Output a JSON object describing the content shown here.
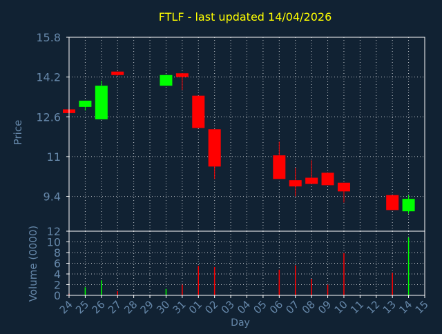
{
  "colors": {
    "background": "#112233",
    "axis": "#FFFFFF",
    "grid": "#FFFFFF",
    "label_text": "#6688AA",
    "title_text": "#FFFF00",
    "up": "#00FF00",
    "down": "#FF0000"
  },
  "chart_data": [
    {
      "type": "candlestick",
      "title": "FTLF - last updated 14/04/2026",
      "ylabel": "Price",
      "ylim": [
        8.0,
        15.8
      ],
      "yticks": [
        "15.8",
        "14.2",
        "12.6",
        "11",
        "9.4"
      ],
      "ytick_values": [
        15.8,
        14.2,
        12.6,
        11.0,
        9.4
      ],
      "grid": true,
      "x": [
        "24",
        "25",
        "26",
        "27",
        "28",
        "29",
        "30",
        "31",
        "01",
        "02",
        "03",
        "04",
        "05",
        "06",
        "07",
        "08",
        "09",
        "10",
        "11",
        "12",
        "13",
        "14",
        "15"
      ],
      "candles": [
        {
          "day": "24",
          "open": 12.9,
          "close": 12.75,
          "high": 12.9,
          "low": 12.75
        },
        {
          "day": "25",
          "open": 13.0,
          "close": 13.25,
          "high": 13.25,
          "low": 12.85
        },
        {
          "day": "26",
          "open": 12.5,
          "close": 13.85,
          "high": 14.05,
          "low": 12.5
        },
        {
          "day": "27",
          "open": 14.42,
          "close": 14.28,
          "high": 14.42,
          "low": 14.25
        },
        {
          "day": "30",
          "open": 13.85,
          "close": 14.28,
          "high": 14.3,
          "low": 13.85
        },
        {
          "day": "31",
          "open": 14.35,
          "close": 14.2,
          "high": 14.35,
          "low": 13.68
        },
        {
          "day": "01",
          "open": 13.45,
          "close": 12.15,
          "high": 13.45,
          "low": 12.15
        },
        {
          "day": "02",
          "open": 12.1,
          "close": 10.6,
          "high": 12.1,
          "low": 10.1
        },
        {
          "day": "06",
          "open": 11.05,
          "close": 10.1,
          "high": 11.6,
          "low": 10.1
        },
        {
          "day": "07",
          "open": 10.05,
          "close": 9.8,
          "high": 10.55,
          "low": 9.4
        },
        {
          "day": "08",
          "open": 10.15,
          "close": 9.9,
          "high": 10.85,
          "low": 9.9
        },
        {
          "day": "09",
          "open": 10.35,
          "close": 9.85,
          "high": 10.35,
          "low": 9.85
        },
        {
          "day": "10",
          "open": 9.95,
          "close": 9.6,
          "high": 9.95,
          "low": 9.15
        },
        {
          "day": "13",
          "open": 9.45,
          "close": 8.85,
          "high": 9.45,
          "low": 8.85
        },
        {
          "day": "14",
          "open": 8.8,
          "close": 9.3,
          "high": 9.45,
          "low": 8.7
        }
      ]
    },
    {
      "type": "bar",
      "ylabel": "Volume (0000)",
      "xlabel": "Day",
      "ylim": [
        0,
        12
      ],
      "yticks": [
        "12",
        "10",
        "8",
        "6",
        "4",
        "2",
        "0"
      ],
      "ytick_values": [
        12,
        10,
        8,
        6,
        4,
        2,
        0
      ],
      "grid": true,
      "categories": [
        "24",
        "25",
        "26",
        "27",
        "28",
        "29",
        "30",
        "31",
        "01",
        "02",
        "03",
        "04",
        "05",
        "06",
        "07",
        "08",
        "09",
        "10",
        "11",
        "12",
        "13",
        "14",
        "15"
      ],
      "bars": [
        {
          "day": "24",
          "value": 0.3,
          "dir": "down"
        },
        {
          "day": "25",
          "value": 1.5,
          "dir": "up"
        },
        {
          "day": "26",
          "value": 2.8,
          "dir": "up"
        },
        {
          "day": "27",
          "value": 0.8,
          "dir": "down"
        },
        {
          "day": "30",
          "value": 1.2,
          "dir": "up"
        },
        {
          "day": "31",
          "value": 2.0,
          "dir": "down"
        },
        {
          "day": "01",
          "value": 5.5,
          "dir": "down"
        },
        {
          "day": "02",
          "value": 5.3,
          "dir": "down"
        },
        {
          "day": "06",
          "value": 4.8,
          "dir": "down"
        },
        {
          "day": "07",
          "value": 5.6,
          "dir": "down"
        },
        {
          "day": "08",
          "value": 3.1,
          "dir": "down"
        },
        {
          "day": "09",
          "value": 2.0,
          "dir": "down"
        },
        {
          "day": "10",
          "value": 7.9,
          "dir": "down"
        },
        {
          "day": "13",
          "value": 4.2,
          "dir": "down"
        },
        {
          "day": "14",
          "value": 10.8,
          "dir": "up"
        }
      ]
    }
  ]
}
